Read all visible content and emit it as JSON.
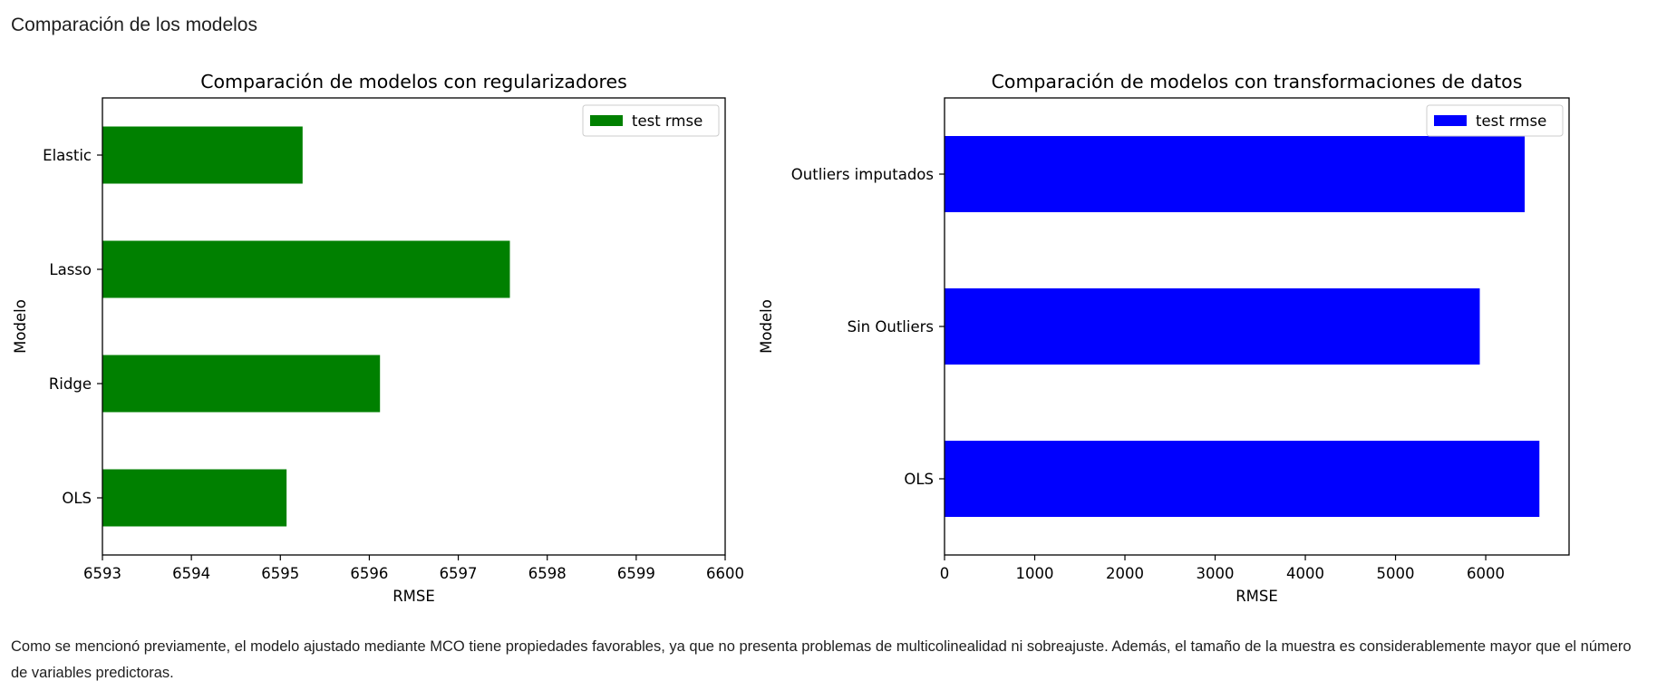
{
  "page": {
    "heading": "Comparación de los modelos",
    "paragraph": "Como se mencionó previamente, el modelo ajustado mediante MCO tiene propiedades favorables, ya que no presenta problemas de multicolinealidad ni sobreajuste. Además, el tamaño de la muestra es considerablemente mayor que el número de variables predictoras."
  },
  "chart_data": [
    {
      "type": "bar",
      "orientation": "horizontal",
      "title": "Comparación de modelos con regularizadores",
      "xlabel": "RMSE",
      "ylabel": "Modelo",
      "categories": [
        "OLS",
        "Ridge",
        "Lasso",
        "Elastic"
      ],
      "series": [
        {
          "name": "test rmse",
          "values": [
            6595.07,
            6596.12,
            6597.58,
            6595.25
          ],
          "color": "#008000"
        }
      ],
      "xlim": [
        6593,
        6600
      ],
      "xticks": [
        "6593",
        "6594",
        "6595",
        "6596",
        "6597",
        "6598",
        "6599",
        "6600"
      ],
      "legend": "top-right",
      "grid": false
    },
    {
      "type": "bar",
      "orientation": "horizontal",
      "title": "Comparación de modelos con transformaciones de datos",
      "xlabel": "RMSE",
      "ylabel": "Modelo",
      "categories": [
        "OLS",
        "Sin Outliers",
        "Outliers imputados"
      ],
      "series": [
        {
          "name": "test rmse",
          "values": [
            6595.07,
            5934,
            6432
          ],
          "color": "#0000ff"
        }
      ],
      "xlim": [
        0,
        6924
      ],
      "xticks": [
        "0",
        "1000",
        "2000",
        "3000",
        "4000",
        "5000",
        "6000"
      ],
      "legend": "top-right",
      "grid": false
    }
  ]
}
